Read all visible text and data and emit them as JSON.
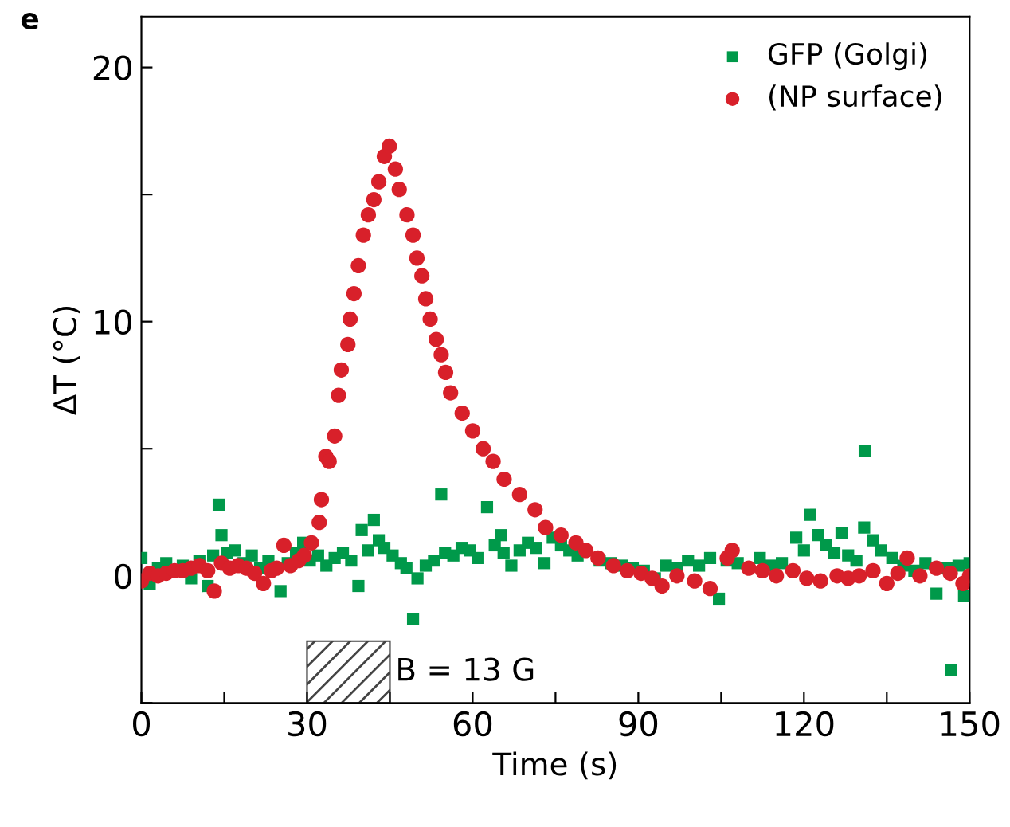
{
  "chart_data": {
    "type": "scatter",
    "xlabel": "Time (s)",
    "ylabel": "ΔT (°C)",
    "annotations": [
      "e"
    ],
    "xlim": [
      0,
      150
    ],
    "ylim": [
      -5,
      22
    ],
    "xticks": [
      0,
      {
        "value": 15,
        "label": null
      },
      30,
      {
        "value": 45,
        "label": null
      },
      60,
      {
        "value": 75,
        "label": null
      },
      90,
      {
        "value": 105,
        "label": null
      },
      120,
      {
        "value": 135,
        "label": null
      },
      150
    ],
    "yticks": [
      {
        "value": -5,
        "label": null
      },
      0,
      {
        "value": 5,
        "label": null
      },
      10,
      {
        "value": 15,
        "label": null
      },
      20
    ],
    "legend": "top right",
    "grid": false,
    "bands": [
      {
        "axis": "x",
        "from": 30,
        "to": 45,
        "label": "B = 13 G"
      }
    ],
    "series": [
      {
        "name": "GFP (Golgi)",
        "color": "#00994a",
        "marker": "square",
        "x": [
          0,
          1.5,
          3,
          4.5,
          6,
          7.5,
          9,
          10.5,
          12,
          13,
          14,
          14.5,
          15.5,
          17,
          18.5,
          20,
          21.5,
          23,
          24,
          25.2,
          26.5,
          28,
          29.3,
          30.5,
          32,
          33.5,
          35,
          36.5,
          38,
          39.3,
          39.9,
          41,
          42.1,
          43,
          44,
          45.5,
          47,
          48,
          49.2,
          50,
          51.5,
          53,
          54.3,
          55,
          56.5,
          58,
          59.5,
          61,
          62.6,
          64,
          65.1,
          65.6,
          67,
          68.5,
          70,
          71.5,
          73,
          74.5,
          76,
          77.5,
          79,
          81,
          83,
          85,
          87,
          89,
          91,
          93,
          95,
          97,
          99,
          101,
          103,
          104.6,
          106,
          108,
          110,
          112,
          114,
          116,
          118.6,
          120,
          121.1,
          122.5,
          124,
          125.5,
          126.8,
          128,
          129.5,
          130.9,
          131,
          132.5,
          134,
          136,
          138,
          140,
          142,
          144,
          146,
          146.6,
          148,
          149,
          150
        ],
        "values": [
          0.7,
          -0.3,
          0.3,
          0.5,
          null,
          0.4,
          -0.1,
          0.6,
          -0.4,
          0.8,
          2.8,
          1.6,
          0.9,
          1.0,
          0.5,
          0.8,
          0.3,
          0.6,
          null,
          -0.6,
          0.5,
          0.9,
          1.3,
          0.6,
          0.8,
          0.4,
          0.7,
          0.9,
          0.6,
          -0.4,
          1.8,
          1.0,
          2.2,
          1.4,
          1.1,
          0.8,
          0.5,
          0.3,
          -1.7,
          -0.1,
          0.4,
          0.6,
          3.2,
          0.9,
          0.8,
          1.1,
          1.0,
          0.7,
          2.7,
          1.2,
          1.6,
          0.9,
          0.4,
          1.0,
          1.3,
          1.1,
          0.5,
          1.5,
          1.2,
          1.0,
          0.8,
          null,
          0.6,
          0.5,
          0.4,
          0.3,
          0.2,
          -0.1,
          0.4,
          0.3,
          0.6,
          0.4,
          0.7,
          -0.9,
          0.6,
          0.5,
          null,
          0.7,
          0.4,
          0.5,
          1.5,
          1.0,
          2.4,
          1.6,
          1.2,
          0.9,
          1.7,
          0.8,
          0.6,
          1.9,
          4.9,
          1.4,
          1.0,
          0.7,
          0.4,
          0.2,
          0.5,
          -0.7,
          0.3,
          -3.7,
          0.4,
          -0.8,
          0.5
        ]
      },
      {
        "name": "(NP surface)",
        "color": "#d8202a",
        "marker": "circle",
        "x": [
          0,
          1.5,
          3,
          4.5,
          6,
          7.5,
          9,
          10.5,
          12,
          13.2,
          14.5,
          16,
          17.5,
          19,
          20.5,
          22.1,
          23.5,
          24.5,
          25.8,
          27,
          28.5,
          29.5,
          30.8,
          32.2,
          32.6,
          33.4,
          34,
          35,
          35.7,
          36.2,
          37.4,
          37.8,
          38.5,
          39.3,
          40.2,
          41.1,
          42.1,
          43,
          44,
          44.9,
          46,
          46.7,
          48.1,
          49.2,
          49.9,
          50.8,
          51.5,
          52.3,
          53.4,
          54.3,
          55.1,
          56,
          58.1,
          60,
          61.9,
          63.7,
          65.7,
          68.5,
          71.3,
          73.2,
          76,
          78.7,
          80.5,
          82.7,
          85.5,
          88,
          90.5,
          92.5,
          94.3,
          97,
          100.2,
          103,
          106.1,
          107,
          110,
          112.5,
          115,
          118,
          120.5,
          123,
          126,
          128,
          130,
          132.5,
          135,
          137,
          138.7,
          141,
          144,
          146.5,
          148.8,
          150
        ],
        "values": [
          -0.2,
          0.1,
          0.0,
          0.1,
          0.2,
          0.2,
          0.3,
          0.4,
          0.2,
          -0.6,
          0.5,
          0.3,
          0.4,
          0.3,
          0.1,
          -0.3,
          0.2,
          0.3,
          1.2,
          0.4,
          0.6,
          0.8,
          1.3,
          2.1,
          3.0,
          4.7,
          4.5,
          5.5,
          7.1,
          8.1,
          9.1,
          10.1,
          11.1,
          12.2,
          13.4,
          14.2,
          14.8,
          15.5,
          16.5,
          16.9,
          16.0,
          15.2,
          14.2,
          13.4,
          12.5,
          11.8,
          10.9,
          10.1,
          9.3,
          8.7,
          8.0,
          7.2,
          6.4,
          5.7,
          5.0,
          4.5,
          3.8,
          3.2,
          2.6,
          1.9,
          1.6,
          1.3,
          1.0,
          0.7,
          0.4,
          0.2,
          0.1,
          -0.1,
          -0.4,
          0.0,
          -0.2,
          -0.5,
          0.7,
          1.0,
          0.3,
          0.2,
          0.0,
          0.2,
          -0.1,
          -0.2,
          0.0,
          -0.1,
          0.0,
          0.2,
          -0.3,
          0.1,
          0.7,
          0.0,
          0.3,
          0.1,
          -0.3,
          0.0
        ]
      }
    ]
  }
}
